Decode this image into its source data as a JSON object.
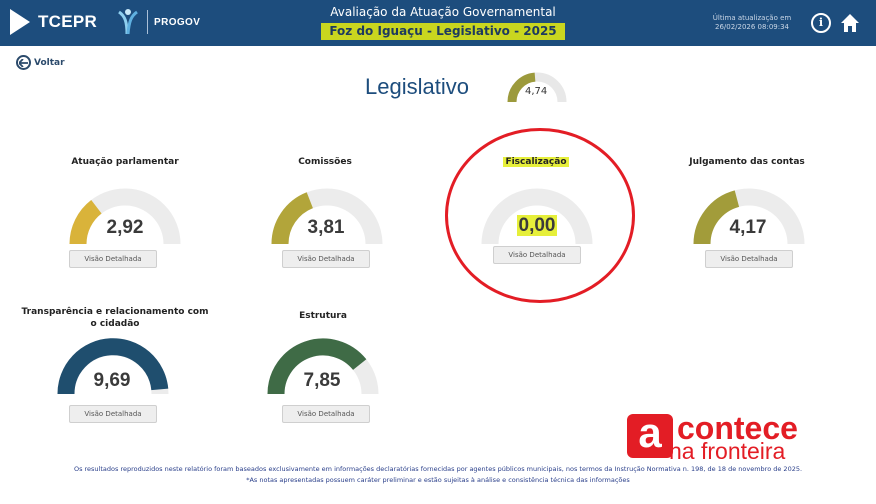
{
  "header": {
    "brand": "TCEPR",
    "progov": "PROGOV",
    "title": "Avaliação da Atuação Governamental",
    "subtitle": "Foz do Iguaçu - Legislativo - 2025",
    "updated_label": "Última atualização em",
    "updated_value": "26/02/2026 08:09:34",
    "info_icon": "info-icon",
    "home_icon": "home-icon",
    "colors": {
      "bar": "#1d4d7d",
      "highlight": "#c9d61f"
    }
  },
  "nav": {
    "back_label": "Voltar"
  },
  "page": {
    "title": "Legislativo",
    "overall_score": "4,74",
    "overall_value": 4.74
  },
  "max_score": 10,
  "cards": [
    {
      "label": "Atuação parlamentar",
      "score": "2,92",
      "value": 2.92,
      "color": "#d9b33a",
      "button": "Visão Detalhada"
    },
    {
      "label": "Comissões",
      "score": "3,81",
      "value": 3.81,
      "color": "#b2a53a",
      "button": "Visão Detalhada"
    },
    {
      "label": "Fiscalização",
      "score": "0,00",
      "value": 0,
      "color": "#c8c8c8",
      "button": "Visão Detalhada"
    },
    {
      "label": "Julgamento das contas",
      "score": "4,17",
      "value": 4.17,
      "color": "#a29c3a",
      "button": "Visão Detalhada"
    },
    {
      "label": "Transparência e relacionamento com o cidadão",
      "score": "9,69",
      "value": 9.69,
      "color": "#1f4e6e",
      "button": "Visão Detalhada"
    },
    {
      "label": "Estrutura",
      "score": "7,85",
      "value": 7.85,
      "color": "#3f6b46",
      "button": "Visão Detalhada"
    }
  ],
  "footer": {
    "line1": "Os resultados reproduzidos neste relatório foram baseados exclusivamente em informações declaratórias fornecidas por agentes públicos municipais, nos termos da Instrução Normativa n. 198, de 18 de novembro de 2025.",
    "line2": "*As notas apresentadas possuem caráter preliminar e estão sujeitas à análise e consistência técnica das informações"
  },
  "watermark": {
    "letter": "a",
    "line1": "contece",
    "line2": "na fronteira",
    "color": "#e31d25"
  }
}
